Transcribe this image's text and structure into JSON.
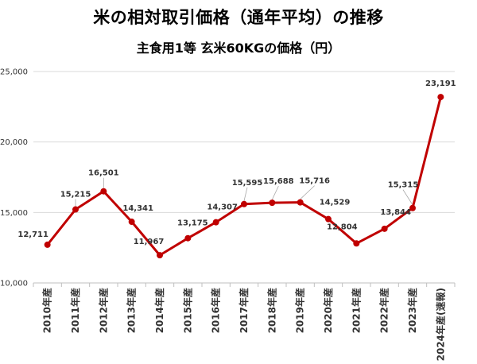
{
  "chart_data": {
    "type": "line",
    "title": "米の相対取引価格（通年平均）の推移",
    "subtitle": "主食用1等 玄米60KGの価格（円）",
    "xlabel": "",
    "ylabel": "",
    "ylim": [
      10000,
      25000
    ],
    "yticks": [
      "10,000",
      "15,000",
      "20,000",
      "25,000"
    ],
    "grid": true,
    "legend": "none",
    "line_color": "#c00000",
    "categories": [
      "2010年産",
      "2011年産",
      "2012年産",
      "2013年産",
      "2014年産",
      "2015年産",
      "2016年産",
      "2017年産",
      "2018年産",
      "2019年産",
      "2020年産",
      "2021年産",
      "2022年産",
      "2023年産",
      "2024年産(速報)"
    ],
    "values": [
      12711,
      15215,
      16501,
      14341,
      11967,
      13175,
      14307,
      15595,
      15688,
      15716,
      14529,
      12804,
      13844,
      15315,
      23191
    ],
    "data_labels": [
      "12,711",
      "15,215",
      "16,501",
      "14,341",
      "11,967",
      "13,175",
      "14,307",
      "15,595",
      "15,688",
      "15,716",
      "14,529",
      "12,804",
      "13,844",
      "15,315",
      "23,191"
    ]
  }
}
